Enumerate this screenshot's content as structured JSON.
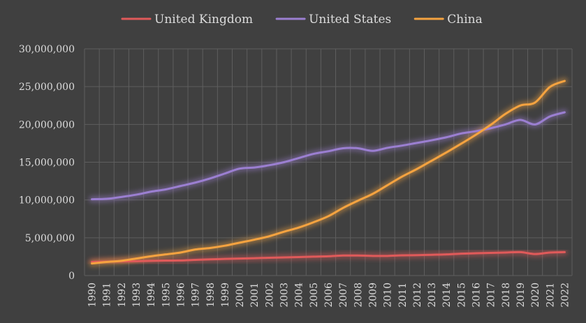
{
  "colors": {
    "background": "#404040",
    "grid": "#5e5e5e",
    "text": "#dcdcdc"
  },
  "chart_data": {
    "type": "line",
    "title": "",
    "xlabel": "",
    "ylabel": "",
    "grid": true,
    "legend_position": "top",
    "ylim": [
      0,
      30000000
    ],
    "y_ticks": [
      0,
      5000000,
      10000000,
      15000000,
      20000000,
      25000000,
      30000000
    ],
    "y_tick_labels": [
      "0",
      "5,000,000",
      "10,000,000",
      "15,000,000",
      "20,000,000",
      "25,000,000",
      "30,000,000"
    ],
    "categories": [
      "1990",
      "1991",
      "1992",
      "1993",
      "1994",
      "1995",
      "1996",
      "1997",
      "1998",
      "1999",
      "2000",
      "2001",
      "2002",
      "2003",
      "2004",
      "2005",
      "2006",
      "2007",
      "2008",
      "2009",
      "2010",
      "2011",
      "2012",
      "2013",
      "2014",
      "2015",
      "2016",
      "2017",
      "2018",
      "2019",
      "2020",
      "2021",
      "2022"
    ],
    "series": [
      {
        "name": "United Kingdom",
        "color": "#e05a5a",
        "values": [
          1800000,
          1850000,
          1880000,
          1900000,
          1950000,
          1980000,
          2000000,
          2080000,
          2150000,
          2200000,
          2250000,
          2300000,
          2350000,
          2400000,
          2450000,
          2500000,
          2550000,
          2650000,
          2650000,
          2600000,
          2600000,
          2680000,
          2700000,
          2750000,
          2800000,
          2900000,
          2950000,
          3000000,
          3050000,
          3100000,
          2850000,
          3050000,
          3100000
        ]
      },
      {
        "name": "United States",
        "color": "#9b7fd1",
        "values": [
          10100000,
          10150000,
          10400000,
          10700000,
          11100000,
          11400000,
          11850000,
          12300000,
          12850000,
          13500000,
          14150000,
          14300000,
          14600000,
          15000000,
          15550000,
          16100000,
          16450000,
          16850000,
          16850000,
          16500000,
          16900000,
          17200000,
          17550000,
          17900000,
          18300000,
          18800000,
          19100000,
          19500000,
          20000000,
          20600000,
          20000000,
          21050000,
          21600000
        ]
      },
      {
        "name": "China",
        "color": "#f5a340",
        "values": [
          1600000,
          1800000,
          1950000,
          2250000,
          2550000,
          2800000,
          3050000,
          3450000,
          3650000,
          3950000,
          4350000,
          4750000,
          5200000,
          5800000,
          6350000,
          7050000,
          7850000,
          8950000,
          9900000,
          10800000,
          11950000,
          13100000,
          14100000,
          15200000,
          16300000,
          17450000,
          18650000,
          19950000,
          21400000,
          22500000,
          22900000,
          24950000,
          25750000
        ]
      }
    ]
  }
}
